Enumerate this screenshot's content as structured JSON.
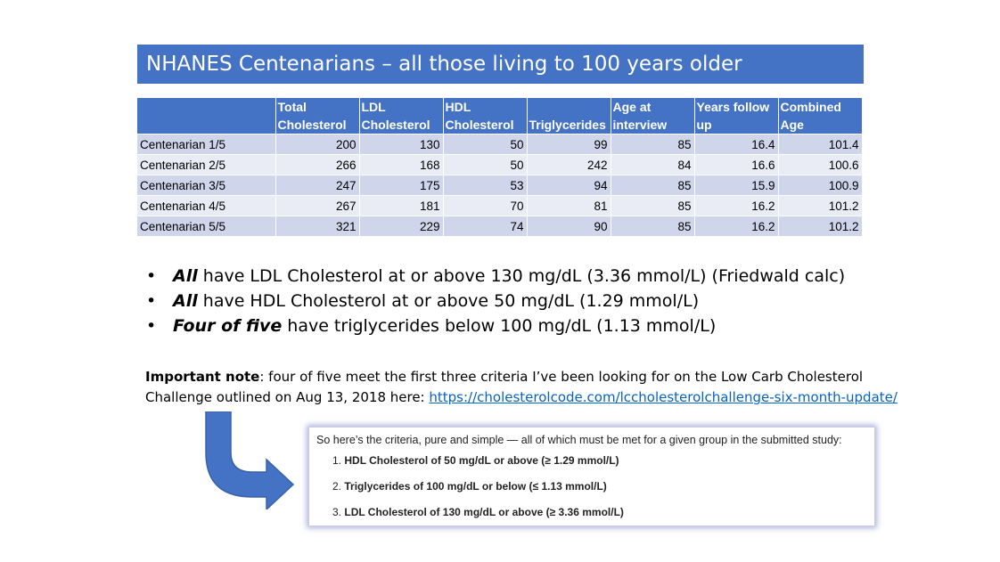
{
  "title": "NHANES Centenarians – all those living to 100 years older",
  "table": {
    "headers": [
      [
        "",
        ""
      ],
      [
        "Total",
        "Cholesterol"
      ],
      [
        "LDL",
        "Cholesterol"
      ],
      [
        "HDL",
        "Cholesterol"
      ],
      [
        "",
        "Triglycerides"
      ],
      [
        "Age at",
        "interview"
      ],
      [
        "Years follow",
        "up"
      ],
      [
        "Combined",
        "Age"
      ]
    ],
    "rows": [
      [
        "Centenarian 1/5",
        "200",
        "130",
        "50",
        "99",
        "85",
        "16.4",
        "101.4"
      ],
      [
        "Centenarian 2/5",
        "266",
        "168",
        "50",
        "242",
        "84",
        "16.6",
        "100.6"
      ],
      [
        "Centenarian 3/5",
        "247",
        "175",
        "53",
        "94",
        "85",
        "15.9",
        "100.9"
      ],
      [
        "Centenarian 4/5",
        "267",
        "181",
        "70",
        "81",
        "85",
        "16.2",
        "101.2"
      ],
      [
        "Centenarian 5/5",
        "321",
        "229",
        "74",
        "90",
        "85",
        "16.2",
        "101.2"
      ]
    ]
  },
  "bullets": [
    {
      "marker": "•",
      "emph": "All",
      "text": " have LDL Cholesterol at or above 130 mg/dL (3.36 mmol/L) (Friedwald calc)"
    },
    {
      "marker": "•",
      "emph": "All",
      "text": " have HDL Cholesterol at or above 50 mg/dL (1.29 mmol/L)"
    },
    {
      "marker": "•",
      "emph": "Four of five",
      "text": " have triglycerides below 100 mg/dL (1.13 mmol/L)"
    }
  ],
  "note": {
    "label": "Important note",
    "text": ": four of five meet the first three criteria I’ve been looking for on the Low Carb Cholesterol Challenge outlined on Aug 13, 2018 here: ",
    "link": "https://cholesterolcode.com/lccholesterolchallenge-six-month-update/"
  },
  "criteria": {
    "intro": "So here’s the criteria, pure and simple — all of which must be met for a given group in the submitted study:",
    "items": [
      {
        "num": "1.",
        "text": "HDL Cholesterol of 50 mg/dL or above (≥ 1.29 mmol/L)"
      },
      {
        "num": "2.",
        "text": "Triglycerides of 100 mg/dL or below (≤ 1.13 mmol/L)"
      },
      {
        "num": "3.",
        "text": "LDL Cholesterol of 130 mg/dL or above (≥ 3.36 mmol/L)"
      }
    ]
  },
  "colors": {
    "accent": "#4472c4",
    "row_odd": "#cfd5ea",
    "row_even": "#e9ebf5",
    "link": "#0563c1"
  }
}
